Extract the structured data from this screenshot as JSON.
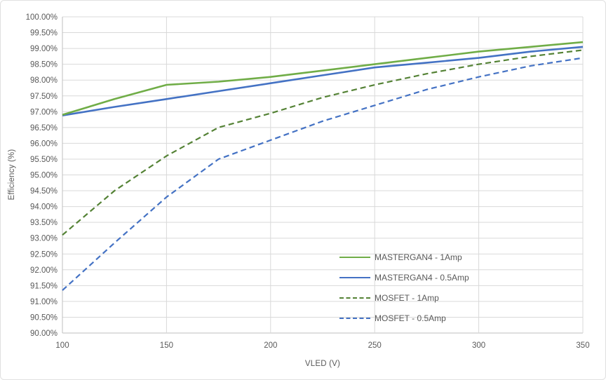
{
  "chart_data": {
    "type": "line",
    "x": [
      100,
      125,
      150,
      175,
      200,
      225,
      250,
      275,
      300,
      325,
      350
    ],
    "series": [
      {
        "name": "MASTERGAN4 - 1Amp",
        "color": "#70ad47",
        "style": "solid",
        "values": [
          96.9,
          97.4,
          97.85,
          97.95,
          98.1,
          98.3,
          98.5,
          98.7,
          98.9,
          99.05,
          99.2
        ]
      },
      {
        "name": "MASTERGAN4 - 0.5Amp",
        "color": "#4472c4",
        "style": "solid",
        "values": [
          96.88,
          97.15,
          97.4,
          97.65,
          97.9,
          98.15,
          98.4,
          98.55,
          98.7,
          98.9,
          99.05
        ]
      },
      {
        "name": "MOSFET - 1Amp",
        "color": "#548235",
        "style": "dashed",
        "values": [
          93.1,
          94.5,
          95.6,
          96.5,
          96.95,
          97.45,
          97.85,
          98.2,
          98.5,
          98.75,
          98.95
        ]
      },
      {
        "name": "MOSFET - 0.5Amp",
        "color": "#4472c4",
        "style": "dashed",
        "values": [
          91.35,
          92.85,
          94.3,
          95.5,
          96.1,
          96.7,
          97.2,
          97.7,
          98.1,
          98.45,
          98.7
        ]
      }
    ],
    "title": "",
    "xlabel": "VLED (V)",
    "ylabel": "Efficiency (%)",
    "xlim": [
      100,
      350
    ],
    "ylim": [
      90,
      100
    ],
    "grid": true,
    "legend_position": "inside-lower-right",
    "x_tick_labels": [
      "100",
      "150",
      "200",
      "250",
      "300",
      "350"
    ],
    "y_tick_labels": [
      "100.00%",
      "99.50%",
      "99.00%",
      "98.50%",
      "98.00%",
      "97.50%",
      "97.00%",
      "96.50%",
      "96.00%",
      "95.50%",
      "95.00%",
      "94.50%",
      "94.00%",
      "93.50%",
      "93.00%",
      "92.50%",
      "92.00%",
      "91.50%",
      "91.00%",
      "90.50%",
      "90.00%"
    ]
  },
  "colors": {
    "grid": "#d9d9d9",
    "axis": "#bfbfbf",
    "text": "#595959",
    "background": "#ffffff"
  }
}
